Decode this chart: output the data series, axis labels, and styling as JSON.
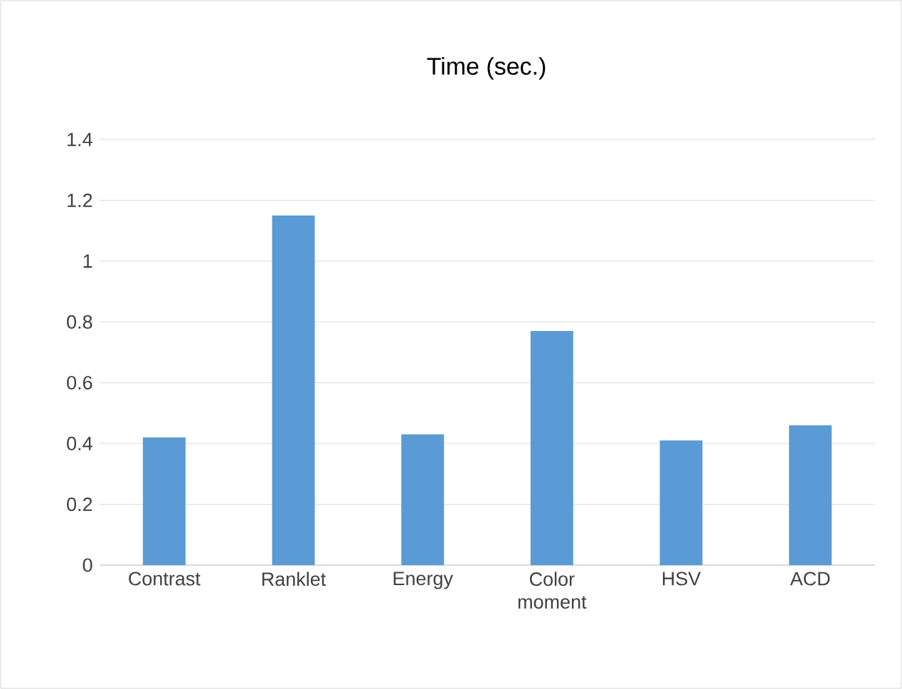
{
  "chart_data": {
    "type": "bar",
    "title": "Time (sec.)",
    "categories": [
      "Contrast",
      "Ranklet",
      "Energy",
      "Color moment",
      "HSV",
      "ACD"
    ],
    "values": [
      0.42,
      1.15,
      0.43,
      0.77,
      0.41,
      0.46
    ],
    "color": "#5b9bd5",
    "ylim": [
      0,
      1.4
    ],
    "yticks": [
      0,
      0.2,
      0.4,
      0.6,
      0.8,
      1,
      1.2,
      1.4
    ],
    "grid": "y"
  }
}
